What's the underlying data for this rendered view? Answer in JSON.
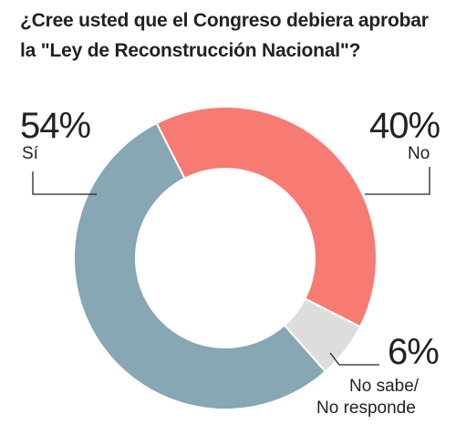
{
  "title": "¿Cree usted que el Congreso debiera aprobar la \"Ley de Reconstrucción Nacional\"?",
  "chart_data": {
    "type": "pie",
    "donut": true,
    "title": "¿Cree usted que el Congreso debiera aprobar la \"Ley de Reconstrucción Nacional\"?",
    "slices": [
      {
        "label": "No",
        "value": 40,
        "value_label": "40%",
        "color": "#F77B73"
      },
      {
        "label": "No sabe/ No responde",
        "value": 6,
        "value_label": "6%",
        "color": "#DDDDDB"
      },
      {
        "label": "Sí",
        "value": 54,
        "value_label": "54%",
        "color": "#86A7B3"
      }
    ],
    "legend": "none"
  },
  "labels": {
    "si_pct": "54%",
    "si_label": "Sí",
    "no_pct": "40%",
    "no_label": "No",
    "ns_pct": "6%",
    "ns_label_line1": "No sabe/",
    "ns_label_line2": "No responde"
  }
}
